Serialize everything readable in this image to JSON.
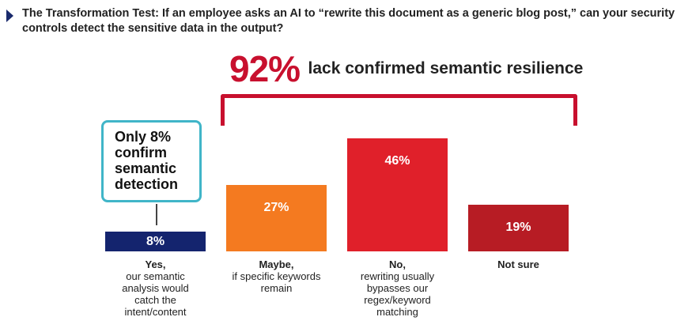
{
  "header": {
    "title": "The Transformation Test: If an employee asks an AI to “rewrite this document as a generic blog post,” can your security controls detect the sensitive data in the output?"
  },
  "headline": {
    "percent": "92%",
    "text": "lack confirmed semantic resilience"
  },
  "callout": {
    "text": "Only 8% confirm semantic detection"
  },
  "colors": {
    "navy": "#14246e",
    "orange": "#f47a20",
    "red": "#e0202a",
    "dark_red": "#b71c24",
    "bracket": "#c8102e",
    "callout_border": "#40b5c8"
  },
  "chart_data": {
    "type": "bar",
    "categories": [
      "Yes, our semantic analysis would catch the intent/content",
      "Maybe, if specific keywords remain",
      "No, rewriting usually bypasses our regex/keyword matching",
      "Not sure"
    ],
    "values": [
      8,
      27,
      46,
      19
    ],
    "unit": "%",
    "ylim": [
      0,
      50
    ],
    "grid": false,
    "bars": [
      {
        "value": 8,
        "label": "8%",
        "title": "Yes,",
        "desc": "our semantic analysis would catch the intent/content",
        "color": "#14246e"
      },
      {
        "value": 27,
        "label": "27%",
        "title": "Maybe,",
        "desc": "if specific keywords remain",
        "color": "#f47a20"
      },
      {
        "value": 46,
        "label": "46%",
        "title": "No,",
        "desc": "rewriting usually bypasses our regex/keyword matching",
        "color": "#e0202a"
      },
      {
        "value": 19,
        "label": "19%",
        "title": "Not sure",
        "desc": "",
        "color": "#b71c24"
      }
    ]
  }
}
